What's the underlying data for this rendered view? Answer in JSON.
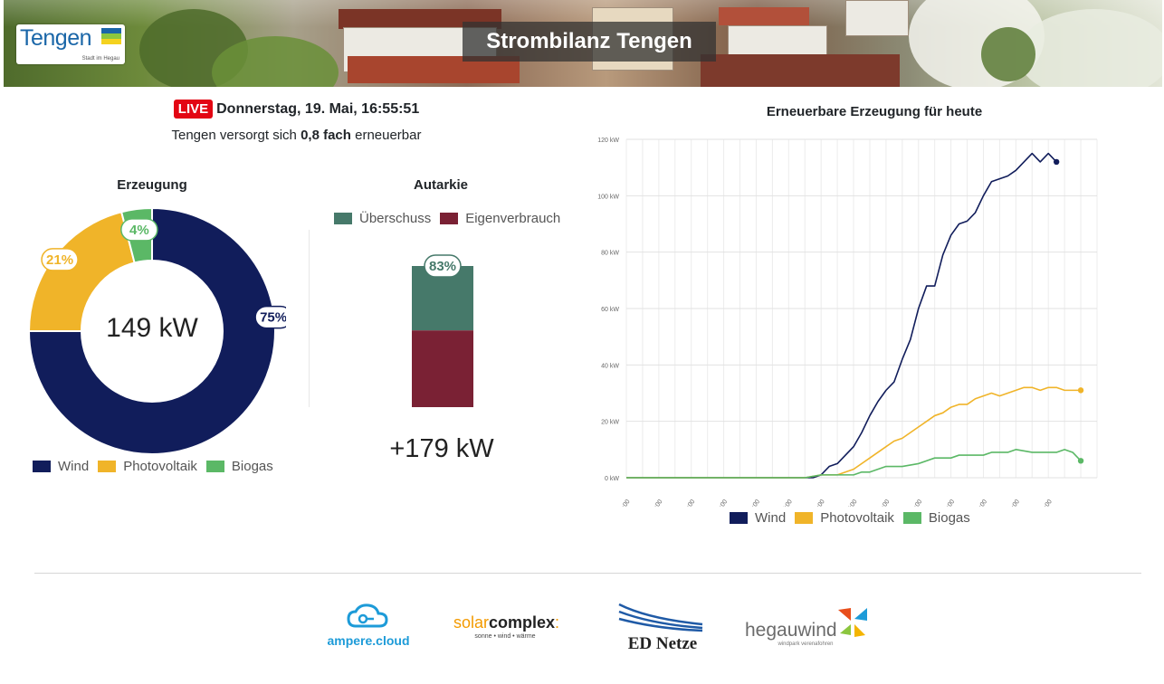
{
  "header": {
    "title": "Strombilanz Tengen",
    "logo_text": "Tengen",
    "logo_subtext": "Stadt im Hegau"
  },
  "status": {
    "live_label": "LIVE",
    "datetime": "Donnerstag, 19. Mai, 16:55:51",
    "ratio_prefix": "Tengen versorgt sich ",
    "ratio_value": "0,8 fach",
    "ratio_suffix": " erneuerbar"
  },
  "colors": {
    "wind": "#111d5b",
    "photovoltaik": "#f0b429",
    "biogas": "#5bb866",
    "ueberschuss": "#46796a",
    "eigenverbrauch": "#7a2134",
    "live": "#e30613"
  },
  "erzeugung": {
    "title": "Erzeugung",
    "center_label": "149 kW",
    "legend": [
      "Wind",
      "Photovoltaik",
      "Biogas"
    ]
  },
  "autarkie": {
    "title": "Autarkie",
    "legend": [
      "Überschuss",
      "Eigenverbrauch"
    ],
    "bar_label": "83%",
    "total_label": "+179 kW"
  },
  "linechart": {
    "title": "Erneuerbare Erzeugung für heute",
    "legend": [
      "Wind",
      "Photovoltaik",
      "Biogas"
    ]
  },
  "chart_data": [
    {
      "type": "pie",
      "title": "Erzeugung",
      "categories": [
        "Wind",
        "Photovoltaik",
        "Biogas"
      ],
      "values": [
        75,
        21,
        4
      ],
      "data_labels": [
        "75%",
        "21%",
        "4%"
      ],
      "center_text": "149 kW",
      "legend": "bottom"
    },
    {
      "type": "bar",
      "title": "Autarkie",
      "categories": [
        "Autarkie"
      ],
      "series": [
        {
          "name": "Überschuss",
          "values": [
            83
          ]
        },
        {
          "name": "Eigenverbrauch",
          "values": [
            100
          ]
        }
      ],
      "data_labels": [
        "83%"
      ],
      "total_text": "+179 kW",
      "legend": "top"
    },
    {
      "type": "line",
      "title": "Erneuerbare Erzeugung für heute",
      "xlabel": "",
      "ylabel": "",
      "ylim": [
        0,
        120
      ],
      "y_ticks": [
        "0 kW",
        "20 kW",
        "40 kW",
        "60 kW",
        "80 kW",
        "100 kW",
        "120 kW"
      ],
      "x_ticks": [
        "00:00",
        "01:00",
        "02:00",
        "03:00",
        "04:00",
        "05:00",
        "06:00",
        "07:00",
        "08:00",
        "09:00",
        "10:00",
        "11:00",
        "12:00",
        "13:00"
      ],
      "grid": true,
      "legend": "bottom",
      "series": [
        {
          "name": "Wind",
          "x": [
            0,
            5.5,
            5.75,
            6.0,
            6.25,
            6.5,
            6.75,
            7.0,
            7.25,
            7.5,
            7.75,
            8.0,
            8.25,
            8.5,
            8.75,
            9.0,
            9.25,
            9.5,
            9.75,
            10.0,
            10.25,
            10.5,
            10.75,
            11.0,
            11.25,
            11.5,
            11.75,
            12.0,
            12.25,
            12.5,
            12.75,
            13.0,
            13.25
          ],
          "y": [
            0,
            0,
            0,
            1,
            4,
            5,
            8,
            11,
            16,
            22,
            27,
            31,
            34,
            42,
            49,
            60,
            68,
            68,
            79,
            86,
            90,
            91,
            94,
            100,
            105,
            106,
            107,
            109,
            112,
            115,
            112,
            115,
            112
          ]
        },
        {
          "name": "Photovoltaik",
          "x": [
            0,
            5.5,
            6.0,
            6.5,
            7.0,
            7.5,
            8.0,
            8.25,
            8.5,
            8.75,
            9.0,
            9.25,
            9.5,
            9.75,
            10.0,
            10.25,
            10.5,
            10.75,
            11.0,
            11.25,
            11.5,
            11.75,
            12.0,
            12.25,
            12.5,
            12.75,
            13.0,
            13.25,
            13.5,
            13.75,
            14.0
          ],
          "y": [
            0,
            0,
            1,
            1,
            3,
            7,
            11,
            13,
            14,
            16,
            18,
            20,
            22,
            23,
            25,
            26,
            26,
            28,
            29,
            30,
            29,
            30,
            31,
            32,
            32,
            31,
            32,
            32,
            31,
            31,
            31
          ]
        },
        {
          "name": "Biogas",
          "x": [
            0,
            5.5,
            6.0,
            6.5,
            7.0,
            7.25,
            7.5,
            8.0,
            8.5,
            9.0,
            9.5,
            10.0,
            10.25,
            11.0,
            11.25,
            11.75,
            12.0,
            12.5,
            13.0,
            13.25,
            13.5,
            13.75,
            14.0
          ],
          "y": [
            0,
            0,
            1,
            1,
            1,
            2,
            2,
            4,
            4,
            5,
            7,
            7,
            8,
            8,
            9,
            9,
            10,
            9,
            9,
            9,
            10,
            9,
            6
          ]
        }
      ]
    }
  ],
  "partners": [
    "ampere.cloud",
    "solarcomplex:",
    "sonne • wind • wärme",
    "ED Netze",
    "hegauwind",
    "windpark verenafohren"
  ]
}
